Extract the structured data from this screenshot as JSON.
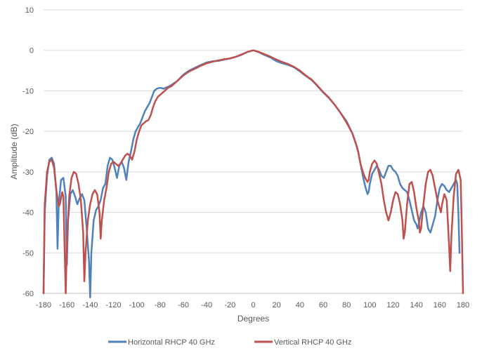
{
  "chart_data": {
    "type": "line",
    "title": "",
    "xlabel": "Degrees",
    "ylabel": "Amplitude (dB)",
    "xlim": [
      -180,
      180
    ],
    "ylim": [
      -60,
      10
    ],
    "x_ticks": [
      "-180",
      "-160",
      "-140",
      "-120",
      "-100",
      "-80",
      "-60",
      "-40",
      "-20",
      "0",
      "20",
      "40",
      "60",
      "80",
      "100",
      "120",
      "140",
      "160",
      "180"
    ],
    "y_ticks": [
      "10",
      "0",
      "-10",
      "-20",
      "-30",
      "-40",
      "-50",
      "-60"
    ],
    "grid": "horizontal",
    "legend_position": "bottom",
    "series": [
      {
        "name": "Horizontal RHCP 40 GHz",
        "color": "#4f81bd",
        "points": [
          [
            -180,
            -60
          ],
          [
            -179,
            -40
          ],
          [
            -177,
            -31
          ],
          [
            -175,
            -27
          ],
          [
            -173,
            -26.5
          ],
          [
            -171,
            -28
          ],
          [
            -169,
            -35
          ],
          [
            -168,
            -49
          ],
          [
            -167,
            -38
          ],
          [
            -165,
            -32
          ],
          [
            -163,
            -31.5
          ],
          [
            -161,
            -36
          ],
          [
            -160,
            -53
          ],
          [
            -159,
            -42
          ],
          [
            -157,
            -35.5
          ],
          [
            -155,
            -34.5
          ],
          [
            -153,
            -36
          ],
          [
            -151,
            -38
          ],
          [
            -149,
            -36.5
          ],
          [
            -147,
            -35.5
          ],
          [
            -145,
            -37
          ],
          [
            -143,
            -44
          ],
          [
            -141,
            -52
          ],
          [
            -140,
            -61
          ],
          [
            -139,
            -50
          ],
          [
            -137,
            -42
          ],
          [
            -135,
            -39.5
          ],
          [
            -133,
            -38.5
          ],
          [
            -131,
            -37
          ],
          [
            -129,
            -34
          ],
          [
            -127,
            -33
          ],
          [
            -125,
            -28.5
          ],
          [
            -123,
            -26.5
          ],
          [
            -121,
            -27
          ],
          [
            -119,
            -29
          ],
          [
            -117,
            -31.5
          ],
          [
            -115,
            -28.5
          ],
          [
            -113,
            -27.5
          ],
          [
            -111,
            -29
          ],
          [
            -109,
            -32
          ],
          [
            -107,
            -27.5
          ],
          [
            -105,
            -25
          ],
          [
            -103,
            -22
          ],
          [
            -101,
            -20
          ],
          [
            -99,
            -19
          ],
          [
            -97,
            -18
          ],
          [
            -95,
            -16.5
          ],
          [
            -93,
            -15
          ],
          [
            -91,
            -14
          ],
          [
            -89,
            -13
          ],
          [
            -87,
            -11.5
          ],
          [
            -85,
            -10
          ],
          [
            -83,
            -9.5
          ],
          [
            -81,
            -9.3
          ],
          [
            -79,
            -9.3
          ],
          [
            -77,
            -9.5
          ],
          [
            -75,
            -9.2
          ],
          [
            -73,
            -9
          ],
          [
            -70,
            -8.5
          ],
          [
            -65,
            -7.5
          ],
          [
            -60,
            -6
          ],
          [
            -55,
            -5
          ],
          [
            -50,
            -4.3
          ],
          [
            -45,
            -3.6
          ],
          [
            -40,
            -3
          ],
          [
            -35,
            -2.7
          ],
          [
            -30,
            -2.6
          ],
          [
            -25,
            -2.3
          ],
          [
            -20,
            -2
          ],
          [
            -15,
            -1.6
          ],
          [
            -10,
            -1.1
          ],
          [
            -5,
            -0.4
          ],
          [
            0,
            0
          ],
          [
            5,
            -0.5
          ],
          [
            10,
            -1.2
          ],
          [
            15,
            -1.8
          ],
          [
            20,
            -2.7
          ],
          [
            25,
            -3.2
          ],
          [
            30,
            -3.6
          ],
          [
            35,
            -4.2
          ],
          [
            40,
            -5.2
          ],
          [
            45,
            -6.3
          ],
          [
            50,
            -7.3
          ],
          [
            55,
            -8.8
          ],
          [
            60,
            -10.4
          ],
          [
            65,
            -11.8
          ],
          [
            70,
            -13.5
          ],
          [
            75,
            -15.5
          ],
          [
            80,
            -17.5
          ],
          [
            85,
            -20.5
          ],
          [
            88,
            -23
          ],
          [
            90,
            -25
          ],
          [
            92,
            -28
          ],
          [
            94,
            -31
          ],
          [
            96,
            -33.5
          ],
          [
            98,
            -35.5
          ],
          [
            99,
            -35
          ],
          [
            100,
            -33
          ],
          [
            102,
            -30.5
          ],
          [
            104,
            -29.5
          ],
          [
            106,
            -28.5
          ],
          [
            108,
            -29.5
          ],
          [
            110,
            -31
          ],
          [
            112,
            -31.5
          ],
          [
            114,
            -30
          ],
          [
            116,
            -28.5
          ],
          [
            118,
            -28.5
          ],
          [
            120,
            -29.5
          ],
          [
            122,
            -30
          ],
          [
            124,
            -31
          ],
          [
            126,
            -33
          ],
          [
            128,
            -34
          ],
          [
            130,
            -34.5
          ],
          [
            132,
            -35
          ],
          [
            134,
            -37
          ],
          [
            136,
            -39.5
          ],
          [
            138,
            -42
          ],
          [
            140,
            -43
          ],
          [
            141,
            -44
          ],
          [
            142,
            -43
          ],
          [
            144,
            -40
          ],
          [
            146,
            -38.5
          ],
          [
            148,
            -40
          ],
          [
            150,
            -44
          ],
          [
            152,
            -45
          ],
          [
            154,
            -43
          ],
          [
            156,
            -41
          ],
          [
            158,
            -37
          ],
          [
            160,
            -34
          ],
          [
            162,
            -33
          ],
          [
            164,
            -33.5
          ],
          [
            166,
            -34.5
          ],
          [
            168,
            -35
          ],
          [
            170,
            -34
          ],
          [
            172,
            -33
          ],
          [
            174,
            -32
          ],
          [
            175,
            -33
          ],
          [
            176,
            -40
          ],
          [
            177,
            -50
          ]
        ]
      },
      {
        "name": "Vertical RHCP 40 GHz",
        "color": "#c0504d",
        "points": [
          [
            -180,
            -60
          ],
          [
            -179,
            -38
          ],
          [
            -177,
            -30
          ],
          [
            -175,
            -27.5
          ],
          [
            -173,
            -27
          ],
          [
            -171,
            -29
          ],
          [
            -169,
            -34.5
          ],
          [
            -167,
            -38.5
          ],
          [
            -166,
            -38
          ],
          [
            -165,
            -36.5
          ],
          [
            -164,
            -35
          ],
          [
            -163,
            -36
          ],
          [
            -162,
            -48
          ],
          [
            -161,
            -60
          ],
          [
            -160,
            -48
          ],
          [
            -158,
            -36
          ],
          [
            -156,
            -31.5
          ],
          [
            -154,
            -30
          ],
          [
            -152,
            -30.5
          ],
          [
            -150,
            -33
          ],
          [
            -148,
            -37
          ],
          [
            -146,
            -45
          ],
          [
            -145,
            -57
          ],
          [
            -144,
            -50
          ],
          [
            -142,
            -42
          ],
          [
            -140,
            -38
          ],
          [
            -138,
            -35.5
          ],
          [
            -136,
            -34.5
          ],
          [
            -134,
            -35.5
          ],
          [
            -132,
            -40
          ],
          [
            -131,
            -46.5
          ],
          [
            -130,
            -42
          ],
          [
            -128,
            -37
          ],
          [
            -126,
            -34
          ],
          [
            -124,
            -30
          ],
          [
            -122,
            -28
          ],
          [
            -120,
            -27.5
          ],
          [
            -118,
            -28
          ],
          [
            -116,
            -28.5
          ],
          [
            -114,
            -28
          ],
          [
            -112,
            -27
          ],
          [
            -110,
            -26
          ],
          [
            -108,
            -25.5
          ],
          [
            -106,
            -26
          ],
          [
            -104,
            -27
          ],
          [
            -102,
            -25
          ],
          [
            -100,
            -22
          ],
          [
            -98,
            -20
          ],
          [
            -96,
            -18.5
          ],
          [
            -94,
            -18
          ],
          [
            -92,
            -17.5
          ],
          [
            -90,
            -17.2
          ],
          [
            -88,
            -16
          ],
          [
            -86,
            -14
          ],
          [
            -84,
            -12.5
          ],
          [
            -82,
            -11.5
          ],
          [
            -80,
            -11
          ],
          [
            -78,
            -10.5
          ],
          [
            -76,
            -10
          ],
          [
            -73,
            -9.2
          ],
          [
            -70,
            -8.8
          ],
          [
            -65,
            -7.5
          ],
          [
            -60,
            -6.2
          ],
          [
            -55,
            -5.2
          ],
          [
            -50,
            -4.5
          ],
          [
            -45,
            -3.8
          ],
          [
            -40,
            -3.2
          ],
          [
            -35,
            -2.8
          ],
          [
            -30,
            -2.5
          ],
          [
            -25,
            -2.2
          ],
          [
            -20,
            -2
          ],
          [
            -15,
            -1.6
          ],
          [
            -10,
            -1
          ],
          [
            -5,
            -0.4
          ],
          [
            0,
            0
          ],
          [
            5,
            -0.4
          ],
          [
            10,
            -1
          ],
          [
            15,
            -1.6
          ],
          [
            20,
            -2.3
          ],
          [
            25,
            -2.9
          ],
          [
            30,
            -3.4
          ],
          [
            35,
            -4.1
          ],
          [
            40,
            -5
          ],
          [
            45,
            -6.2
          ],
          [
            50,
            -7.2
          ],
          [
            55,
            -8.7
          ],
          [
            60,
            -10.3
          ],
          [
            65,
            -11.7
          ],
          [
            70,
            -13.5
          ],
          [
            75,
            -15.5
          ],
          [
            80,
            -17.8
          ],
          [
            85,
            -20.5
          ],
          [
            88,
            -23
          ],
          [
            90,
            -25
          ],
          [
            92,
            -28
          ],
          [
            94,
            -30
          ],
          [
            96,
            -31.5
          ],
          [
            98,
            -32.5
          ],
          [
            99,
            -32
          ],
          [
            100,
            -30
          ],
          [
            102,
            -28
          ],
          [
            104,
            -27.2
          ],
          [
            106,
            -28
          ],
          [
            108,
            -30.5
          ],
          [
            110,
            -33
          ],
          [
            112,
            -37
          ],
          [
            114,
            -40
          ],
          [
            116,
            -42
          ],
          [
            118,
            -40
          ],
          [
            120,
            -37
          ],
          [
            122,
            -35
          ],
          [
            124,
            -35.5
          ],
          [
            126,
            -38
          ],
          [
            128,
            -42
          ],
          [
            129,
            -46.5
          ],
          [
            130,
            -45
          ],
          [
            132,
            -38
          ],
          [
            134,
            -33
          ],
          [
            136,
            -32.5
          ],
          [
            138,
            -35
          ],
          [
            140,
            -39
          ],
          [
            142,
            -42
          ],
          [
            143,
            -45
          ],
          [
            144,
            -44
          ],
          [
            146,
            -38
          ],
          [
            148,
            -33
          ],
          [
            150,
            -30
          ],
          [
            152,
            -29.5
          ],
          [
            154,
            -31
          ],
          [
            156,
            -34
          ],
          [
            158,
            -37
          ],
          [
            160,
            -39
          ],
          [
            161,
            -40
          ],
          [
            162,
            -38
          ],
          [
            164,
            -35.5
          ],
          [
            166,
            -37
          ],
          [
            168,
            -48
          ],
          [
            169,
            -54.5
          ],
          [
            170,
            -46
          ],
          [
            172,
            -36
          ],
          [
            174,
            -30.5
          ],
          [
            176,
            -29.5
          ],
          [
            178,
            -32
          ],
          [
            179,
            -45
          ],
          [
            180,
            -60
          ]
        ]
      }
    ]
  }
}
